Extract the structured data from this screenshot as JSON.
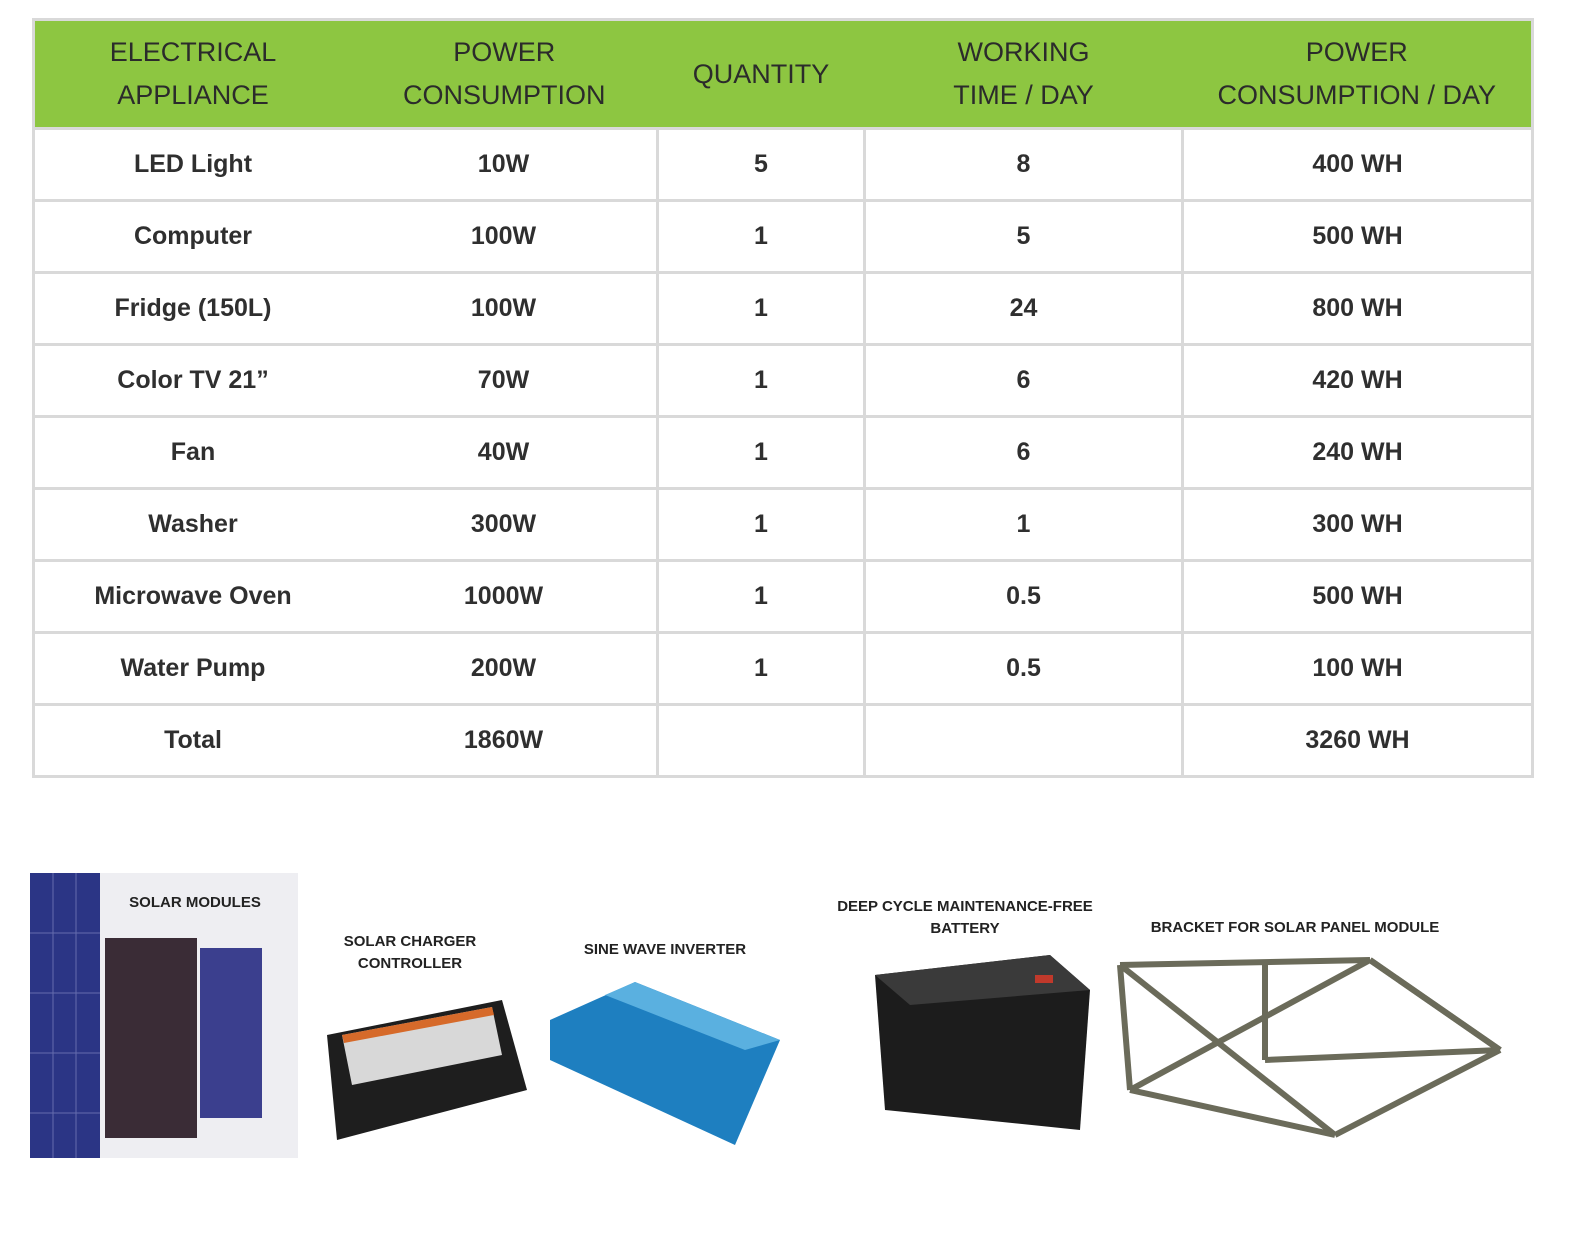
{
  "table": {
    "headers": [
      [
        "ELECTRICAL",
        "APPLIANCE"
      ],
      [
        "POWER",
        "CONSUMPTION"
      ],
      [
        "QUANTITY"
      ],
      [
        "WORKING",
        "TIME / DAY"
      ],
      [
        "POWER",
        "CONSUMPTION / DAY"
      ]
    ],
    "rows": [
      [
        "LED Light",
        "10W",
        "5",
        "8",
        "400 WH"
      ],
      [
        "Computer",
        "100W",
        "1",
        "5",
        "500 WH"
      ],
      [
        "Fridge (150L)",
        "100W",
        "1",
        "24",
        "800 WH"
      ],
      [
        "Color TV 21”",
        "70W",
        "1",
        "6",
        "420 WH"
      ],
      [
        "Fan",
        "40W",
        "1",
        "6",
        "240 WH"
      ],
      [
        "Washer",
        "300W",
        "1",
        "1",
        "300 WH"
      ],
      [
        "Microwave Oven",
        "1000W",
        "1",
        "0.5",
        "500 WH"
      ],
      [
        "Water Pump",
        "200W",
        "1",
        "0.5",
        "100 WH"
      ],
      [
        "Total",
        "1860W",
        "",
        "",
        "3260 WH"
      ]
    ],
    "header_color": "#8dc641"
  },
  "components": [
    {
      "label": "SOLAR MODULES"
    },
    {
      "label": "SOLAR CHARGER CONTROLLER"
    },
    {
      "label": "SINE WAVE INVERTER"
    },
    {
      "label": "DEEP CYCLE MAINTENANCE-FREE BATTERY"
    },
    {
      "label": "BRACKET FOR SOLAR PANEL MODULE"
    }
  ]
}
